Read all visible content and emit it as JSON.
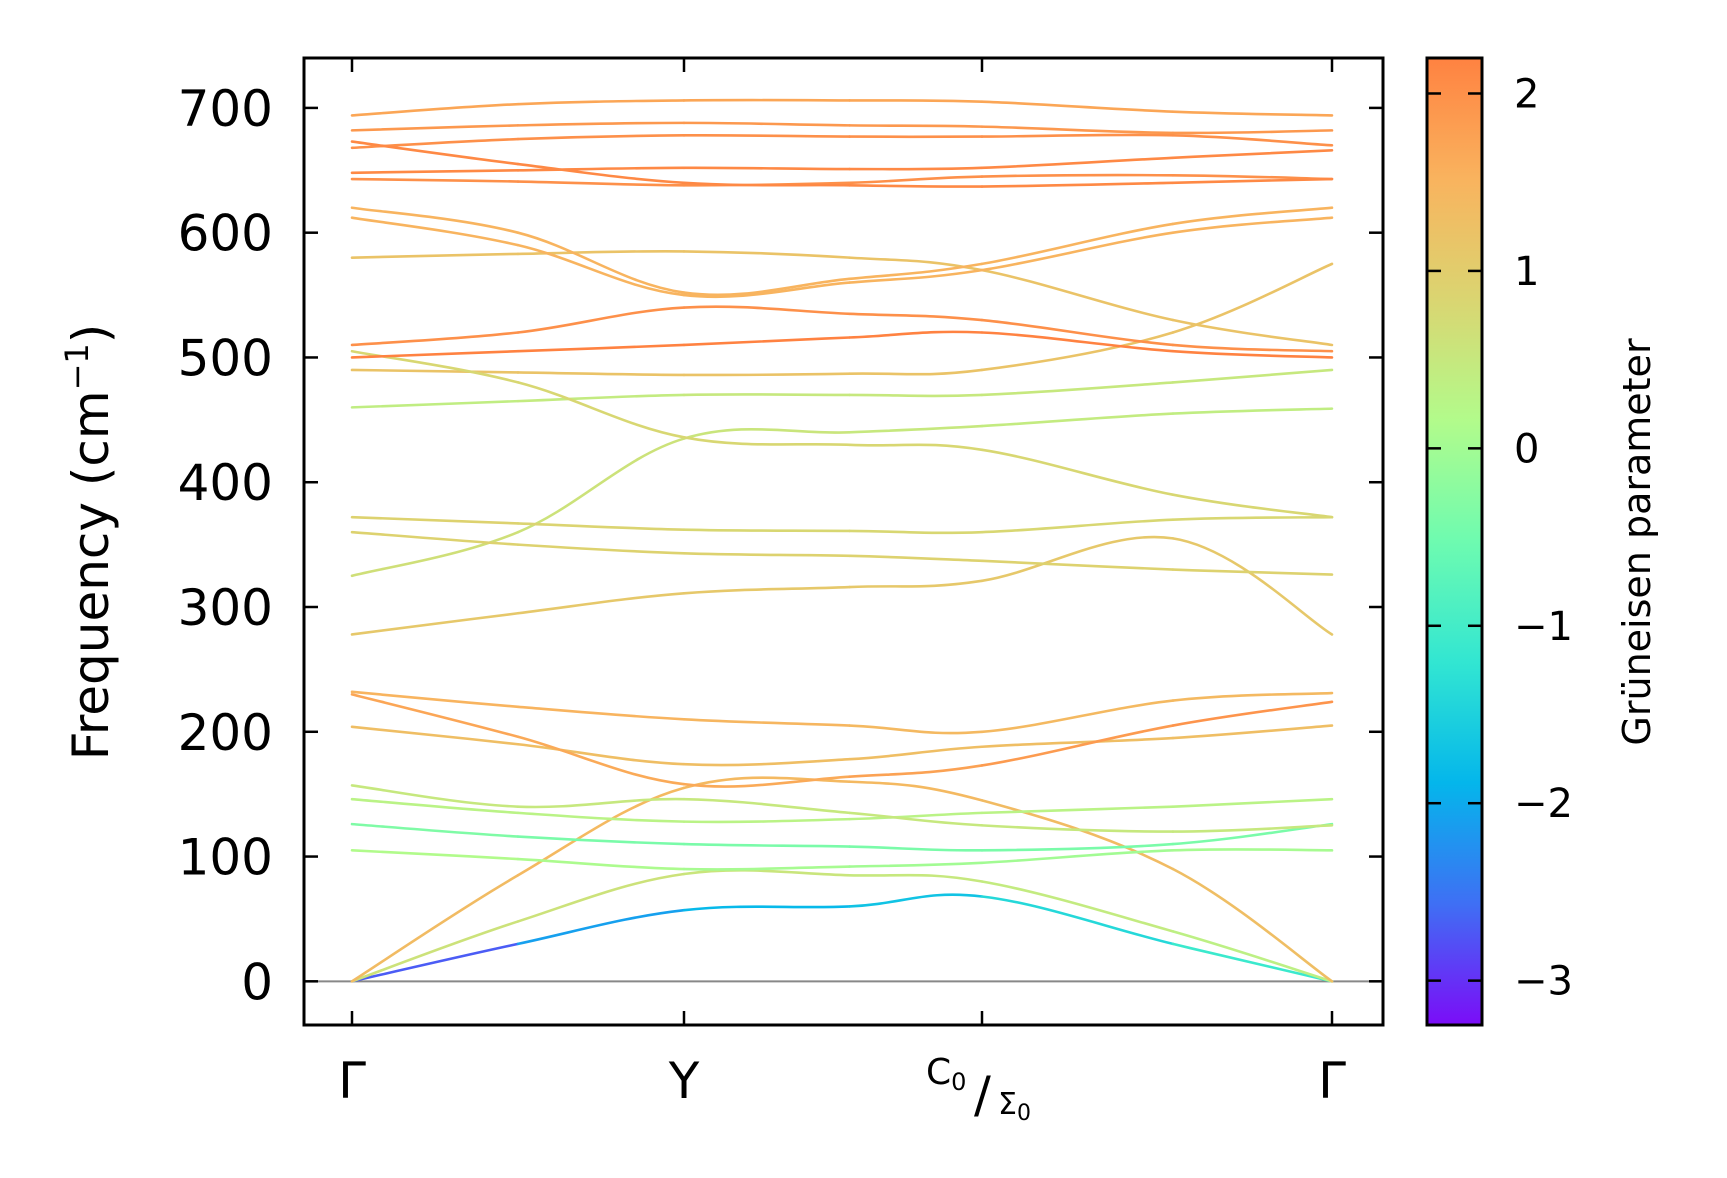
{
  "chart_data": {
    "type": "line",
    "title": "",
    "xlabel": "",
    "ylabel": "Frequency (cm",
    "ylabel_unit_exp": "−1",
    "ylabel_close": ")",
    "ylim": [
      -35,
      740
    ],
    "yticks": [
      0,
      100,
      200,
      300,
      400,
      500,
      600,
      700
    ],
    "ytick_labels": [
      "0",
      "100",
      "200",
      "300",
      "400",
      "500",
      "600",
      "700"
    ],
    "x_path": [
      0,
      1,
      1.9,
      3
    ],
    "x_labels": {
      "gamma_start": "Γ",
      "y_point": "Y",
      "c0": "C",
      "c0_sub": "0",
      "slash": "/",
      "sigma0": "Σ",
      "sigma0_sub": "0",
      "gamma_end": "Γ"
    },
    "colorbar": {
      "label": "Grüneisen parameter",
      "range": [
        -3.25,
        2.2
      ],
      "ticks": [
        2,
        1,
        0,
        -1,
        -2,
        -3
      ],
      "tick_labels": [
        "2",
        "1",
        "0",
        "−1",
        "−2",
        "−3"
      ],
      "colors": [
        "#7b0df7",
        "#3f6ff4",
        "#04b6eb",
        "#32e6d2",
        "#6efbb0",
        "#b2fb8b",
        "#dad571",
        "#f9b35e",
        "#ff8241"
      ]
    },
    "series": [
      {
        "name": "band1",
        "x": [
          0,
          0.5,
          1,
          1.5,
          1.9,
          2.5,
          3
        ],
        "y": [
          0,
          30,
          57,
          60,
          68,
          30,
          0
        ],
        "gamma": [
          -3.1,
          -2.3,
          -1.9,
          -1.8,
          -1.6,
          -1.2,
          -1.0
        ]
      },
      {
        "name": "band2",
        "x": [
          0,
          0.5,
          1,
          1.5,
          1.9,
          2.5,
          3
        ],
        "y": [
          0,
          48,
          86,
          85,
          80,
          40,
          0
        ],
        "gamma": [
          0.6,
          0.6,
          0.6,
          0.5,
          0.5,
          0.4,
          0.3
        ]
      },
      {
        "name": "band3",
        "x": [
          0,
          0.5,
          1,
          1.5,
          1.9,
          2.5,
          3
        ],
        "y": [
          0,
          85,
          155,
          160,
          145,
          90,
          0
        ],
        "gamma": [
          1.3,
          1.4,
          1.4,
          1.4,
          1.4,
          1.3,
          1.3
        ]
      },
      {
        "name": "band4",
        "x": [
          0,
          0.5,
          1,
          1.5,
          1.9,
          2.5,
          3
        ],
        "y": [
          105,
          98,
          90,
          92,
          95,
          105,
          105
        ],
        "gamma": [
          0.2,
          0.1,
          0.1,
          0.0,
          0.0,
          0.0,
          0.1
        ]
      },
      {
        "name": "band5",
        "x": [
          0,
          0.5,
          1,
          1.5,
          1.9,
          2.5,
          3
        ],
        "y": [
          126,
          116,
          110,
          108,
          105,
          110,
          126
        ],
        "gamma": [
          -0.3,
          -0.4,
          -0.4,
          -0.4,
          -0.4,
          -0.4,
          -0.4
        ]
      },
      {
        "name": "band6",
        "x": [
          0,
          0.5,
          1,
          1.5,
          1.9,
          2.5,
          3
        ],
        "y": [
          146,
          135,
          128,
          130,
          135,
          140,
          146
        ],
        "gamma": [
          0.3,
          0.3,
          0.3,
          0.3,
          0.3,
          0.3,
          0.3
        ]
      },
      {
        "name": "band7",
        "x": [
          0,
          0.5,
          1,
          1.5,
          1.9,
          2.5,
          3
        ],
        "y": [
          157,
          140,
          146,
          135,
          125,
          120,
          125
        ],
        "gamma": [
          0.5,
          0.5,
          0.5,
          0.5,
          0.5,
          0.5,
          0.5
        ]
      },
      {
        "name": "band8",
        "x": [
          0,
          0.5,
          1,
          1.5,
          1.9,
          2.5,
          3
        ],
        "y": [
          204,
          190,
          174,
          178,
          188,
          195,
          205
        ],
        "gamma": [
          1.3,
          1.3,
          1.3,
          1.3,
          1.3,
          1.3,
          1.3
        ]
      },
      {
        "name": "band9",
        "x": [
          0,
          0.5,
          1,
          1.5,
          1.9,
          2.5,
          3
        ],
        "y": [
          230,
          196,
          158,
          164,
          173,
          205,
          224
        ],
        "gamma": [
          1.7,
          1.7,
          1.6,
          1.7,
          1.8,
          1.9,
          2.0
        ]
      },
      {
        "name": "band10",
        "x": [
          0,
          0.5,
          1,
          1.5,
          1.9,
          2.5,
          3
        ],
        "y": [
          232,
          220,
          210,
          205,
          200,
          225,
          231
        ],
        "gamma": [
          1.5,
          1.5,
          1.5,
          1.4,
          1.4,
          1.4,
          1.4
        ]
      },
      {
        "name": "band11",
        "x": [
          0,
          0.5,
          1,
          1.5,
          1.9,
          2.5,
          3
        ],
        "y": [
          278,
          295,
          311,
          316,
          321,
          355,
          278
        ],
        "gamma": [
          1.1,
          1.1,
          1.1,
          1.1,
          1.1,
          1.1,
          1.1
        ]
      },
      {
        "name": "band12",
        "x": [
          0,
          0.5,
          1,
          1.5,
          1.9,
          2.5,
          3
        ],
        "y": [
          325,
          360,
          435,
          440,
          445,
          455,
          459
        ],
        "gamma": [
          0.7,
          0.6,
          0.6,
          0.5,
          0.5,
          0.4,
          0.4
        ]
      },
      {
        "name": "band13",
        "x": [
          0,
          0.5,
          1,
          1.5,
          1.9,
          2.5,
          3
        ],
        "y": [
          360,
          350,
          343,
          341,
          337,
          330,
          326
        ],
        "gamma": [
          0.9,
          0.9,
          0.9,
          0.9,
          0.9,
          0.9,
          0.9
        ]
      },
      {
        "name": "band14",
        "x": [
          0,
          0.5,
          1,
          1.5,
          1.9,
          2.5,
          3
        ],
        "y": [
          372,
          367,
          362,
          361,
          360,
          370,
          372
        ],
        "gamma": [
          0.9,
          0.9,
          0.8,
          0.8,
          0.8,
          0.8,
          0.8
        ]
      },
      {
        "name": "band15",
        "x": [
          0,
          0.5,
          1,
          1.5,
          1.9,
          2.5,
          3
        ],
        "y": [
          460,
          465,
          470,
          470,
          470,
          480,
          490
        ],
        "gamma": [
          0.4,
          0.4,
          0.5,
          0.5,
          0.5,
          0.5,
          0.5
        ]
      },
      {
        "name": "band16",
        "x": [
          0,
          0.5,
          1,
          1.5,
          1.9,
          2.5,
          3
        ],
        "y": [
          490,
          488,
          486,
          487,
          490,
          520,
          575
        ],
        "gamma": [
          1.2,
          1.2,
          1.2,
          1.2,
          1.2,
          1.2,
          1.2
        ]
      },
      {
        "name": "band17",
        "x": [
          0,
          0.5,
          1,
          1.5,
          1.9,
          2.5,
          3
        ],
        "y": [
          505,
          480,
          436,
          430,
          426,
          390,
          372
        ],
        "gamma": [
          0.8,
          0.8,
          0.8,
          0.8,
          0.8,
          0.8,
          0.8
        ]
      },
      {
        "name": "band18",
        "x": [
          0,
          0.5,
          1,
          1.5,
          1.9,
          2.5,
          3
        ],
        "y": [
          500,
          505,
          510,
          516,
          520,
          505,
          500
        ],
        "gamma": [
          2.2,
          2.2,
          2.2,
          2.2,
          2.2,
          2.2,
          2.2
        ]
      },
      {
        "name": "band19",
        "x": [
          0,
          0.5,
          1,
          1.5,
          1.9,
          2.5,
          3
        ],
        "y": [
          510,
          520,
          540,
          535,
          530,
          510,
          505
        ],
        "gamma": [
          2.0,
          2.0,
          2.0,
          2.0,
          2.0,
          2.0,
          2.0
        ]
      },
      {
        "name": "band20",
        "x": [
          0,
          0.5,
          1,
          1.5,
          1.9,
          2.5,
          3
        ],
        "y": [
          580,
          583,
          585,
          580,
          570,
          530,
          510
        ],
        "gamma": [
          1.2,
          1.2,
          1.2,
          1.2,
          1.2,
          1.2,
          1.2
        ]
      },
      {
        "name": "band21",
        "x": [
          0,
          0.5,
          1,
          1.5,
          1.9,
          2.5,
          3
        ],
        "y": [
          612,
          590,
          550,
          560,
          570,
          600,
          612
        ],
        "gamma": [
          1.5,
          1.5,
          1.5,
          1.5,
          1.5,
          1.5,
          1.5
        ]
      },
      {
        "name": "band22",
        "x": [
          0,
          0.5,
          1,
          1.5,
          1.9,
          2.5,
          3
        ],
        "y": [
          620,
          600,
          552,
          563,
          575,
          607,
          620
        ],
        "gamma": [
          1.5,
          1.5,
          1.5,
          1.5,
          1.5,
          1.5,
          1.5
        ]
      },
      {
        "name": "band23",
        "x": [
          0,
          0.5,
          1,
          1.5,
          1.9,
          2.5,
          3
        ],
        "y": [
          643,
          641,
          638,
          640,
          645,
          646,
          643
        ],
        "gamma": [
          2.0,
          2.0,
          2.0,
          2.0,
          2.0,
          2.0,
          2.0
        ]
      },
      {
        "name": "band24",
        "x": [
          0,
          0.5,
          1,
          1.5,
          1.9,
          2.5,
          3
        ],
        "y": [
          648,
          650,
          652,
          651,
          652,
          660,
          666
        ],
        "gamma": [
          2.1,
          2.1,
          2.1,
          2.1,
          2.1,
          2.1,
          2.1
        ]
      },
      {
        "name": "band25",
        "x": [
          0,
          0.5,
          1,
          1.5,
          1.9,
          2.5,
          3
        ],
        "y": [
          668,
          675,
          678,
          677,
          677,
          678,
          670
        ],
        "gamma": [
          2.0,
          2.0,
          2.0,
          2.0,
          2.0,
          2.0,
          2.0
        ]
      },
      {
        "name": "band26",
        "x": [
          0,
          0.5,
          1,
          1.5,
          1.9,
          2.5,
          3
        ],
        "y": [
          673,
          655,
          640,
          638,
          637,
          640,
          643
        ],
        "gamma": [
          2.1,
          2.1,
          2.1,
          2.1,
          2.1,
          2.1,
          2.1
        ]
      },
      {
        "name": "band27",
        "x": [
          0,
          0.5,
          1,
          1.5,
          1.9,
          2.5,
          3
        ],
        "y": [
          682,
          686,
          688,
          686,
          685,
          680,
          682
        ],
        "gamma": [
          1.9,
          1.9,
          1.9,
          1.9,
          1.9,
          1.9,
          1.9
        ]
      },
      {
        "name": "band28",
        "x": [
          0,
          0.5,
          1,
          1.5,
          1.9,
          2.5,
          3
        ],
        "y": [
          694,
          703,
          706,
          706,
          705,
          697,
          694
        ],
        "gamma": [
          1.7,
          1.7,
          1.7,
          1.7,
          1.7,
          1.7,
          1.7
        ]
      }
    ]
  }
}
